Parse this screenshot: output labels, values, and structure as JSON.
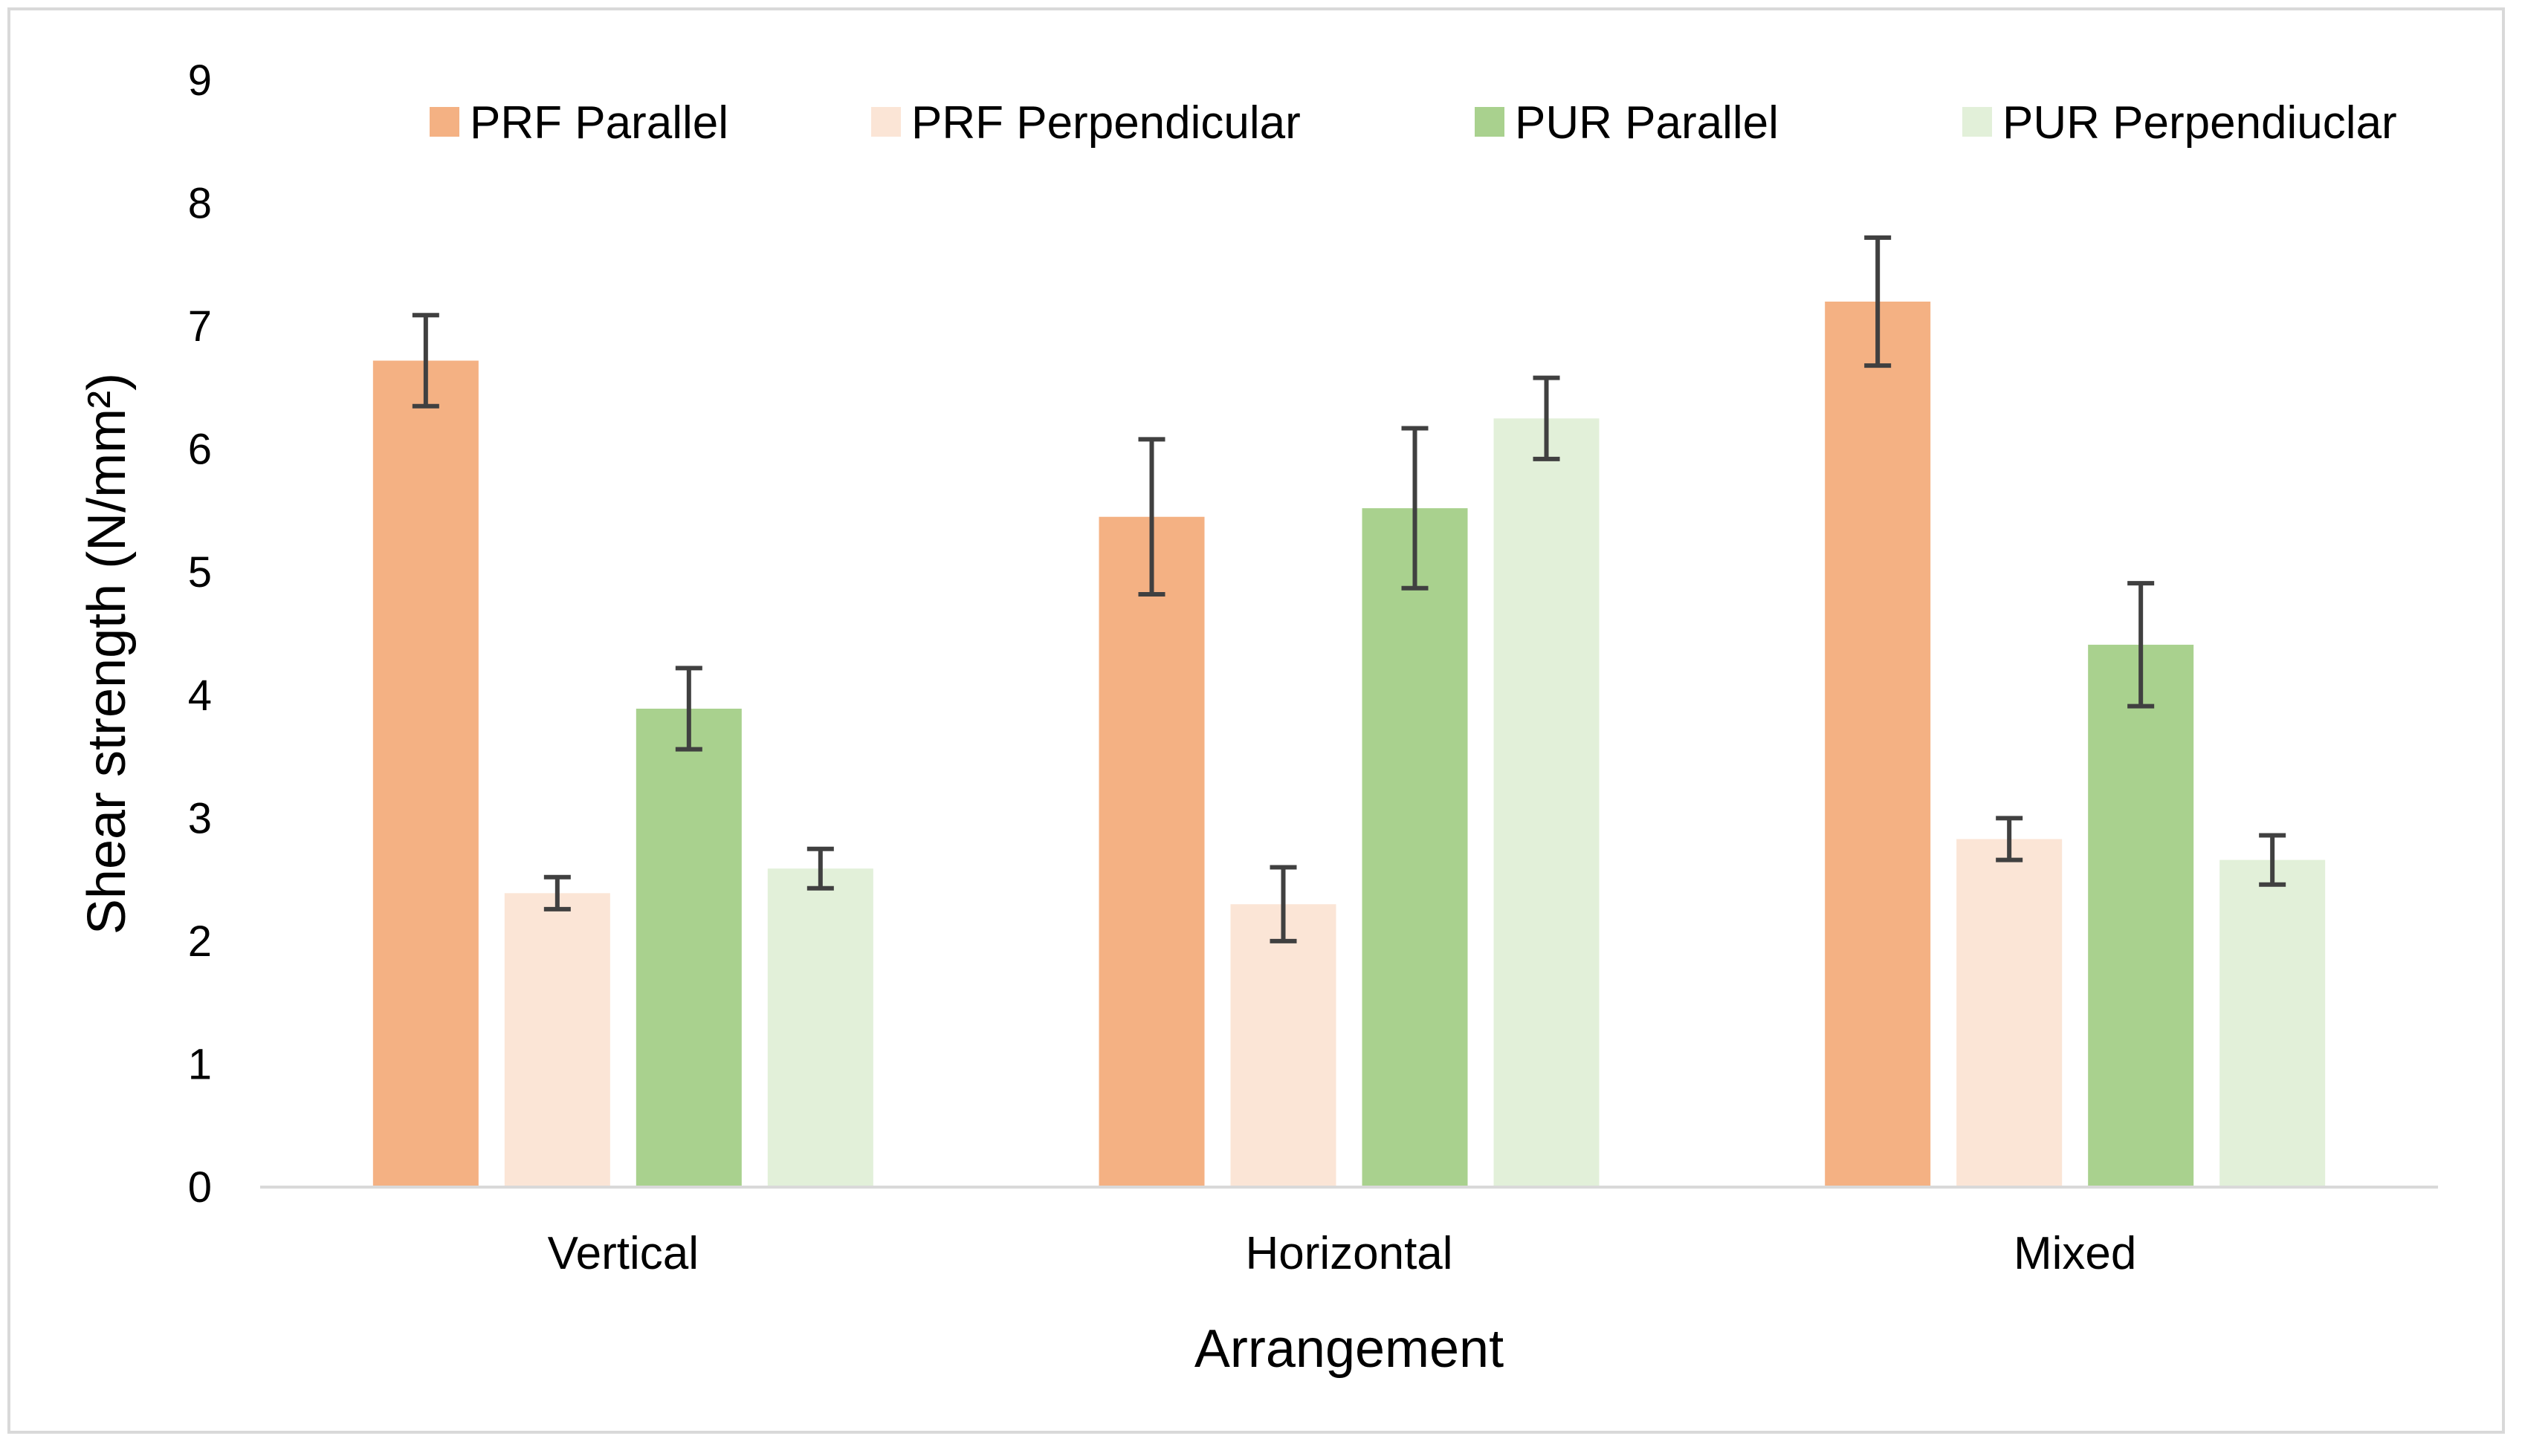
{
  "chart_data": {
    "type": "bar",
    "title": "",
    "xlabel": "Arrangement",
    "ylabel": "Shear strength (N/mm²)",
    "ylim": [
      0,
      9
    ],
    "yticks": [
      0,
      1,
      2,
      3,
      4,
      5,
      6,
      7,
      8,
      9
    ],
    "grid": false,
    "legend_position": "top",
    "categories": [
      "Vertical",
      "Horizontal",
      "Mixed"
    ],
    "series": [
      {
        "name": "PRF Parallel",
        "color": "#f4b183",
        "values": [
          6.72,
          5.45,
          7.2
        ],
        "error": [
          0.37,
          0.63,
          0.52
        ]
      },
      {
        "name": "PRF Perpendicular",
        "color": "#fbe5d6",
        "values": [
          2.39,
          2.3,
          2.83
        ],
        "error": [
          0.13,
          0.3,
          0.17
        ]
      },
      {
        "name": "PUR Parallel",
        "color": "#a9d18e",
        "values": [
          3.89,
          5.52,
          4.41
        ],
        "error": [
          0.33,
          0.65,
          0.5
        ]
      },
      {
        "name": "PUR Perpendiuclar",
        "color": "#e2f0d9",
        "values": [
          2.59,
          6.25,
          2.66
        ],
        "error": [
          0.16,
          0.33,
          0.2
        ]
      }
    ]
  }
}
